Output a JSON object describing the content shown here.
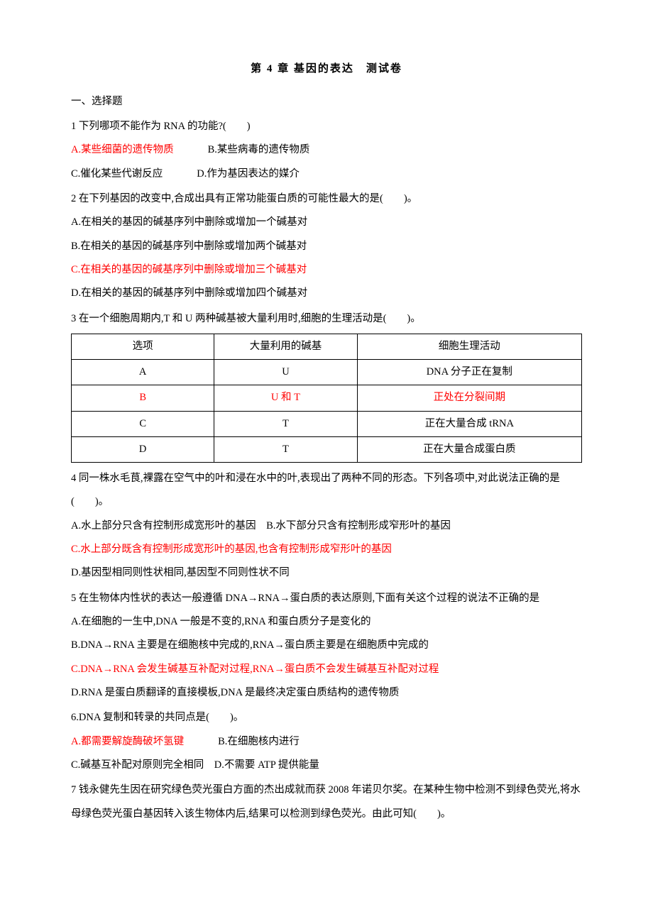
{
  "title": "第 4 章 基因的表达　测试卷",
  "section1": "一、选择题",
  "q1": {
    "stem": "1 下列哪项不能作为 RNA 的功能?(　　)",
    "a": "A.某些细菌的遗传物质",
    "b": "B.某些病毒的遗传物质",
    "c": "C.催化某些代谢反应",
    "d": "D.作为基因表达的媒介"
  },
  "q2": {
    "stem": "2 在下列基因的改变中,合成出具有正常功能蛋白质的可能性最大的是(　　)。",
    "a": "A.在相关的基因的碱基序列中删除或增加一个碱基对",
    "b": "B.在相关的基因的碱基序列中删除或增加两个碱基对",
    "c": "C.在相关的基因的碱基序列中删除或增加三个碱基对",
    "d": "D.在相关的基因的碱基序列中删除或增加四个碱基对"
  },
  "q3": {
    "stem": "3 在一个细胞周期内,T 和 U 两种碱基被大量利用时,细胞的生理活动是(　　)。",
    "table": {
      "headers": [
        "选项",
        "大量利用的碱基",
        "细胞生理活动"
      ],
      "rows": [
        {
          "opt": "A",
          "base": "U",
          "act": "DNA 分子正在复制",
          "red": false
        },
        {
          "opt": "B",
          "base": "U 和 T",
          "act": "正处在分裂间期",
          "red": true
        },
        {
          "opt": "C",
          "base": "T",
          "act": "正在大量合成 tRNA",
          "red": false
        },
        {
          "opt": "D",
          "base": "T",
          "act": "正在大量合成蛋白质",
          "red": false
        }
      ]
    }
  },
  "q4": {
    "stem": "4 同一株水毛茛,裸露在空气中的叶和浸在水中的叶,表现出了两种不同的形态。下列各项中,对此说法正确的是(　　)。",
    "a": "A.水上部分只含有控制形成宽形叶的基因",
    "b": "B.水下部分只含有控制形成窄形叶的基因",
    "c": "C.水上部分既含有控制形成宽形叶的基因,也含有控制形成窄形叶的基因",
    "d": "D.基因型相同则性状相同,基因型不同则性状不同"
  },
  "q5": {
    "stem": "5 在生物体内性状的表达一般遵循 DNA→RNA→蛋白质的表达原则,下面有关这个过程的说法不正确的是",
    "a": "A.在细胞的一生中,DNA 一般是不变的,RNA 和蛋白质分子是变化的",
    "b": "B.DNA→RNA 主要是在细胞核中完成的,RNA→蛋白质主要是在细胞质中完成的",
    "c": "C.DNA→RNA 会发生碱基互补配对过程,RNA→蛋白质不会发生碱基互补配对过程",
    "d": "D.RNA 是蛋白质翻译的直接模板,DNA 是最终决定蛋白质结构的遗传物质"
  },
  "q6": {
    "stem": "6.DNA 复制和转录的共同点是(　　)。",
    "a": "A.都需要解旋酶破坏氢键",
    "b": "B.在细胞核内进行",
    "c": "C.碱基互补配对原则完全相同",
    "d": "D.不需要 ATP 提供能量"
  },
  "q7": {
    "stem": "7 钱永健先生因在研究绿色荧光蛋白方面的杰出成就而获 2008 年诺贝尔奖。在某种生物中检测不到绿色荧光,将水母绿色荧光蛋白基因转入该生物体内后,结果可以检测到绿色荧光。由此可知(　　)。"
  }
}
